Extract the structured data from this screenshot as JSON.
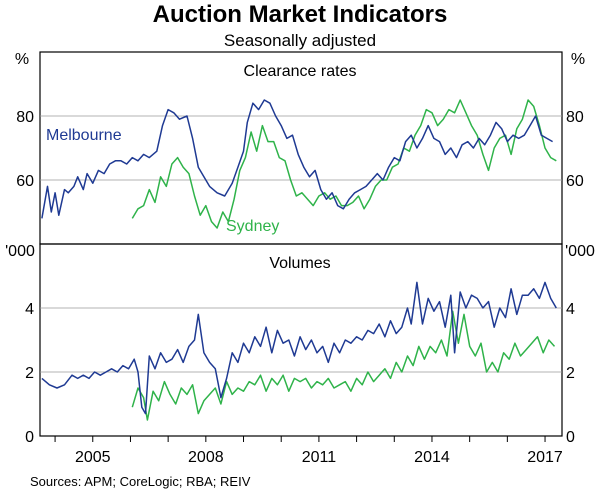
{
  "chart_data": {
    "type": "line",
    "title": "Auction Market Indicators",
    "subtitle": "Seasonally adjusted",
    "source": "Sources: APM; CoreLogic; RBA; REIV",
    "x_axis": {
      "range": [
        2003.6,
        2017.45
      ],
      "ticks": [
        2005,
        2008,
        2011,
        2014,
        2017
      ],
      "tick_labels": [
        "2005",
        "2008",
        "2011",
        "2014",
        "2017"
      ]
    },
    "colors": {
      "Melbourne": "#1f3a93",
      "Sydney": "#2fb34a"
    },
    "panels": [
      {
        "title": "Clearance rates",
        "unit_left": "%",
        "unit_right": "%",
        "ylim": [
          40,
          100
        ],
        "yticks": [
          60,
          80
        ],
        "ytick_labels_left": [
          "60",
          "80"
        ],
        "ytick_labels_right": [
          "60",
          "80"
        ],
        "series": [
          {
            "name": "Melbourne",
            "label": "Melbourne",
            "x": [
              2003.65,
              2003.8,
              2003.9,
              2004.0,
              2004.1,
              2004.25,
              2004.35,
              2004.5,
              2004.6,
              2004.75,
              2004.85,
              2005.0,
              2005.15,
              2005.3,
              2005.45,
              2005.6,
              2005.75,
              2005.9,
              2006.05,
              2006.2,
              2006.35,
              2006.5,
              2006.7,
              2006.85,
              2007.0,
              2007.15,
              2007.3,
              2007.5,
              2007.65,
              2007.8,
              2007.95,
              2008.1,
              2008.3,
              2008.5,
              2008.7,
              2008.85,
              2009.0,
              2009.1,
              2009.25,
              2009.4,
              2009.55,
              2009.7,
              2009.85,
              2010.0,
              2010.15,
              2010.3,
              2010.45,
              2010.6,
              2010.75,
              2010.9,
              2011.05,
              2011.2,
              2011.35,
              2011.5,
              2011.65,
              2011.8,
              2011.95,
              2012.1,
              2012.25,
              2012.4,
              2012.55,
              2012.7,
              2012.85,
              2013.0,
              2013.15,
              2013.3,
              2013.45,
              2013.6,
              2013.75,
              2013.9,
              2014.05,
              2014.2,
              2014.35,
              2014.5,
              2014.65,
              2014.8,
              2014.95,
              2015.1,
              2015.25,
              2015.4,
              2015.55,
              2015.7,
              2015.85,
              2016.0,
              2016.15,
              2016.3,
              2016.45,
              2016.6,
              2016.75,
              2016.9,
              2017.05,
              2017.2
            ],
            "values": [
              48,
              58,
              50,
              56,
              49,
              57,
              56,
              58,
              61,
              57,
              62,
              59,
              63,
              62,
              65,
              66,
              66,
              65,
              67,
              66,
              68,
              67,
              69,
              77,
              82,
              81,
              79,
              80,
              73,
              64,
              61,
              58,
              56,
              55,
              59,
              64,
              69,
              78,
              84,
              82,
              85,
              84,
              80,
              77,
              73,
              74,
              68,
              64,
              61,
              63,
              57,
              54,
              56,
              52,
              51,
              54,
              56,
              57,
              58,
              60,
              62,
              60,
              64,
              67,
              66,
              72,
              74,
              70,
              73,
              77,
              73,
              72,
              68,
              70,
              67,
              71,
              72,
              70,
              73,
              71,
              74,
              78,
              76,
              72,
              74,
              73,
              74,
              77,
              80,
              74,
              73,
              72
            ]
          },
          {
            "name": "Sydney",
            "label": "Sydney",
            "x": [
              2006.05,
              2006.2,
              2006.35,
              2006.5,
              2006.65,
              2006.8,
              2006.95,
              2007.1,
              2007.25,
              2007.4,
              2007.55,
              2007.7,
              2007.85,
              2008.0,
              2008.15,
              2008.3,
              2008.45,
              2008.6,
              2008.75,
              2008.9,
              2009.05,
              2009.2,
              2009.35,
              2009.5,
              2009.65,
              2009.8,
              2009.95,
              2010.1,
              2010.25,
              2010.4,
              2010.55,
              2010.7,
              2010.85,
              2011.0,
              2011.15,
              2011.3,
              2011.45,
              2011.6,
              2011.75,
              2011.9,
              2012.05,
              2012.2,
              2012.35,
              2012.5,
              2012.65,
              2012.8,
              2012.95,
              2013.1,
              2013.25,
              2013.4,
              2013.55,
              2013.7,
              2013.85,
              2014.0,
              2014.15,
              2014.3,
              2014.45,
              2014.6,
              2014.75,
              2014.9,
              2015.05,
              2015.2,
              2015.35,
              2015.5,
              2015.65,
              2015.8,
              2015.95,
              2016.1,
              2016.25,
              2016.4,
              2016.55,
              2016.7,
              2016.85,
              2017.0,
              2017.15,
              2017.3
            ],
            "values": [
              48,
              51,
              52,
              57,
              53,
              61,
              58,
              65,
              67,
              64,
              62,
              55,
              49,
              52,
              47,
              45,
              50,
              47,
              54,
              63,
              67,
              75,
              69,
              77,
              72,
              72,
              67,
              66,
              60,
              55,
              56,
              54,
              52,
              55,
              56,
              54,
              55,
              52,
              52,
              53,
              55,
              51,
              54,
              58,
              60,
              60,
              64,
              65,
              70,
              69,
              74,
              77,
              82,
              81,
              77,
              79,
              82,
              81,
              85,
              81,
              77,
              74,
              68,
              63,
              70,
              73,
              74,
              68,
              76,
              79,
              85,
              83,
              77,
              70,
              67,
              66
            ]
          }
        ]
      },
      {
        "title": "Volumes",
        "unit_left": "'000",
        "unit_right": "'000",
        "ylim": [
          0,
          6
        ],
        "yticks": [
          0,
          2,
          4
        ],
        "ytick_labels_left": [
          "0",
          "2",
          "4"
        ],
        "ytick_labels_right": [
          "0",
          "2",
          "4"
        ],
        "series": [
          {
            "name": "Melbourne",
            "x": [
              2003.65,
              2003.85,
              2004.05,
              2004.25,
              2004.45,
              2004.6,
              2004.75,
              2004.9,
              2005.05,
              2005.2,
              2005.35,
              2005.5,
              2005.65,
              2005.8,
              2005.95,
              2006.1,
              2006.2,
              2006.3,
              2006.4,
              2006.5,
              2006.65,
              2006.8,
              2006.95,
              2007.1,
              2007.25,
              2007.4,
              2007.55,
              2007.7,
              2007.8,
              2007.95,
              2008.1,
              2008.25,
              2008.4,
              2008.55,
              2008.7,
              2008.85,
              2009.0,
              2009.15,
              2009.3,
              2009.45,
              2009.6,
              2009.75,
              2009.9,
              2010.05,
              2010.2,
              2010.35,
              2010.5,
              2010.65,
              2010.8,
              2010.95,
              2011.1,
              2011.25,
              2011.4,
              2011.55,
              2011.7,
              2011.85,
              2012.0,
              2012.15,
              2012.3,
              2012.45,
              2012.6,
              2012.75,
              2012.9,
              2013.05,
              2013.2,
              2013.35,
              2013.45,
              2013.6,
              2013.75,
              2013.9,
              2014.05,
              2014.2,
              2014.35,
              2014.5,
              2014.6,
              2014.75,
              2014.9,
              2015.05,
              2015.2,
              2015.35,
              2015.5,
              2015.65,
              2015.8,
              2015.95,
              2016.1,
              2016.25,
              2016.4,
              2016.55,
              2016.7,
              2016.85,
              2017.0,
              2017.15,
              2017.3
            ],
            "values": [
              1.8,
              1.6,
              1.5,
              1.6,
              1.9,
              1.8,
              1.9,
              1.8,
              2.0,
              1.9,
              2.0,
              2.1,
              2.0,
              2.2,
              2.1,
              2.4,
              2.0,
              0.9,
              0.7,
              2.5,
              2.1,
              2.6,
              2.3,
              2.4,
              2.7,
              2.3,
              2.8,
              3.0,
              3.8,
              2.6,
              2.3,
              2.1,
              1.2,
              1.8,
              2.6,
              2.3,
              2.9,
              2.6,
              3.1,
              2.8,
              3.4,
              2.6,
              3.3,
              2.9,
              3.0,
              2.5,
              3.1,
              2.7,
              3.0,
              2.6,
              2.8,
              2.3,
              2.9,
              2.6,
              3.0,
              2.9,
              3.1,
              3.0,
              3.3,
              3.2,
              3.5,
              3.1,
              3.6,
              3.2,
              3.4,
              4.0,
              3.5,
              4.8,
              3.5,
              4.3,
              3.9,
              4.2,
              3.4,
              4.4,
              2.6,
              4.5,
              4.0,
              4.4,
              4.3,
              4.0,
              4.2,
              3.4,
              4.0,
              3.7,
              4.6,
              3.8,
              4.4,
              4.4,
              4.6,
              4.3,
              4.8,
              4.3,
              4.0
            ]
          },
          {
            "name": "Sydney",
            "x": [
              2006.05,
              2006.2,
              2006.35,
              2006.45,
              2006.6,
              2006.75,
              2006.9,
              2007.05,
              2007.2,
              2007.35,
              2007.5,
              2007.65,
              2007.8,
              2007.95,
              2008.1,
              2008.25,
              2008.4,
              2008.55,
              2008.7,
              2008.85,
              2009.0,
              2009.15,
              2009.3,
              2009.45,
              2009.6,
              2009.75,
              2009.9,
              2010.05,
              2010.2,
              2010.35,
              2010.5,
              2010.65,
              2010.8,
              2010.95,
              2011.1,
              2011.25,
              2011.4,
              2011.55,
              2011.7,
              2011.85,
              2012.0,
              2012.15,
              2012.3,
              2012.45,
              2012.6,
              2012.75,
              2012.9,
              2013.05,
              2013.2,
              2013.35,
              2013.5,
              2013.65,
              2013.8,
              2013.95,
              2014.1,
              2014.25,
              2014.4,
              2014.55,
              2014.7,
              2014.85,
              2015.0,
              2015.15,
              2015.3,
              2015.45,
              2015.6,
              2015.75,
              2015.9,
              2016.05,
              2016.2,
              2016.35,
              2016.5,
              2016.65,
              2016.8,
              2016.95,
              2017.1,
              2017.25
            ],
            "values": [
              0.9,
              1.5,
              1.2,
              0.5,
              1.4,
              1.1,
              1.7,
              1.3,
              1.0,
              1.5,
              1.3,
              1.6,
              0.7,
              1.1,
              1.3,
              1.5,
              1.0,
              1.7,
              1.3,
              1.5,
              1.4,
              1.7,
              1.6,
              1.9,
              1.4,
              1.8,
              1.6,
              1.9,
              1.4,
              1.8,
              1.7,
              1.8,
              1.5,
              1.7,
              1.6,
              1.8,
              1.5,
              1.6,
              1.7,
              1.4,
              1.8,
              1.6,
              2.0,
              1.7,
              1.9,
              2.1,
              1.8,
              2.3,
              2.0,
              2.5,
              2.2,
              2.8,
              2.4,
              2.8,
              2.6,
              3.0,
              2.5,
              3.9,
              2.9,
              3.8,
              2.8,
              2.5,
              2.9,
              2.0,
              2.3,
              2.0,
              2.6,
              2.4,
              2.9,
              2.5,
              2.7,
              2.9,
              3.1,
              2.6,
              3.0,
              2.8
            ]
          }
        ]
      }
    ]
  }
}
